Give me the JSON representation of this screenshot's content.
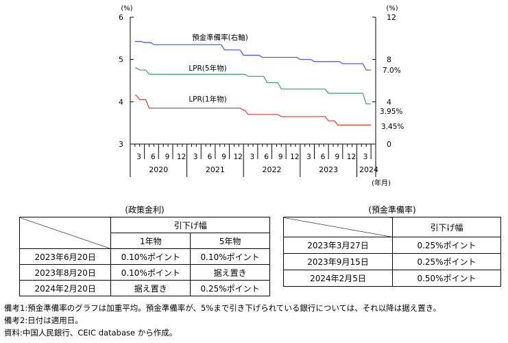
{
  "chart_data": {
    "type": "line",
    "left_axis": {
      "unit": "(%)",
      "ticks": [
        "6",
        "5",
        "4",
        "3"
      ],
      "range": [
        3,
        6
      ]
    },
    "right_axis": {
      "unit": "(%)",
      "ticks": [
        "12",
        "8",
        "4",
        "0"
      ],
      "range": [
        0,
        12
      ]
    },
    "x_month_labels": [
      "3",
      "6",
      "9",
      "12",
      "3",
      "6",
      "9",
      "12",
      "3",
      "6",
      "9",
      "12",
      "3",
      "6",
      "9",
      "12",
      "3"
    ],
    "x_year_labels": [
      "2020",
      "2021",
      "2022",
      "2023",
      "2024"
    ],
    "x_unit": "(年月)",
    "series": [
      {
        "name": "預金準備率(右軸)",
        "axis": "right",
        "color": "#3a52d6",
        "end_label": "7.0%",
        "points": [
          [
            "2020-01",
            9.7
          ],
          [
            "2020-03",
            9.6
          ],
          [
            "2020-05",
            9.4
          ],
          [
            "2021-07",
            9.4
          ],
          [
            "2021-08",
            8.9
          ],
          [
            "2021-12",
            8.4
          ],
          [
            "2022-04",
            8.2
          ],
          [
            "2022-12",
            8.0
          ],
          [
            "2023-03",
            7.8
          ],
          [
            "2023-09",
            7.6
          ],
          [
            "2024-02",
            7.0
          ],
          [
            "2024-03",
            7.0
          ]
        ]
      },
      {
        "name": "LPR(5年物)",
        "axis": "left",
        "color": "#3d9b6b",
        "end_label": "3.95%",
        "points": [
          [
            "2020-01",
            4.8
          ],
          [
            "2020-02",
            4.75
          ],
          [
            "2020-04",
            4.65
          ],
          [
            "2021-12",
            4.65
          ],
          [
            "2022-01",
            4.6
          ],
          [
            "2022-05",
            4.45
          ],
          [
            "2022-08",
            4.3
          ],
          [
            "2023-06",
            4.2
          ],
          [
            "2024-02",
            3.95
          ],
          [
            "2024-03",
            3.95
          ]
        ]
      },
      {
        "name": "LPR(1年物)",
        "axis": "left",
        "color": "#e03a2a",
        "end_label": "3.45%",
        "points": [
          [
            "2020-01",
            4.15
          ],
          [
            "2020-02",
            4.05
          ],
          [
            "2020-04",
            3.85
          ],
          [
            "2021-11",
            3.85
          ],
          [
            "2021-12",
            3.8
          ],
          [
            "2022-01",
            3.7
          ],
          [
            "2022-08",
            3.65
          ],
          [
            "2023-06",
            3.55
          ],
          [
            "2023-08",
            3.45
          ],
          [
            "2024-03",
            3.45
          ]
        ]
      }
    ]
  },
  "table_policy": {
    "title": "(政策金利)",
    "group_header": "引下げ幅",
    "col_headers": [
      "1年物",
      "5年物"
    ],
    "rows": [
      [
        "2023年6月20日",
        "0.10%ポイント",
        "0.10%ポイント"
      ],
      [
        "2023年8月20日",
        "0.10%ポイント",
        "据え置き"
      ],
      [
        "2024年2月20日",
        "据え置き",
        "0.25%ポイント"
      ]
    ]
  },
  "table_reserve": {
    "title": "(預金準備率)",
    "header": "引下げ幅",
    "rows": [
      [
        "2023年3月27日",
        "0.25%ポイント"
      ],
      [
        "2023年9月15日",
        "0.25%ポイント"
      ],
      [
        "2024年2月5日",
        "0.50%ポイント"
      ]
    ]
  },
  "notes": [
    "備考1:預金準備率のグラフは加重平均。預金準備率が、5%まで引き下げられている銀行については、それ以降は据え置き。",
    "備考2:日付は適用日。",
    "資料:中国人民銀行、CEIC database から作成。"
  ]
}
